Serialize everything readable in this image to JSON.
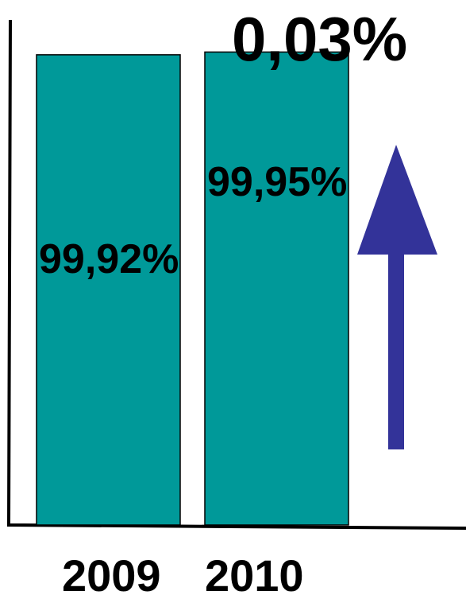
{
  "chart_data": {
    "type": "bar",
    "categories": [
      "2009",
      "2010"
    ],
    "values": [
      99.92,
      99.95
    ],
    "value_labels": [
      "99,92%",
      "99,95%"
    ],
    "annotation": "0,03%",
    "annotation_icon": "up-arrow-icon",
    "ylim": [
      94.8,
      100.3
    ],
    "grid": false,
    "legend": "none",
    "colors": {
      "bar": "#009999",
      "arrow": "#333399",
      "axis": "#000000"
    }
  }
}
